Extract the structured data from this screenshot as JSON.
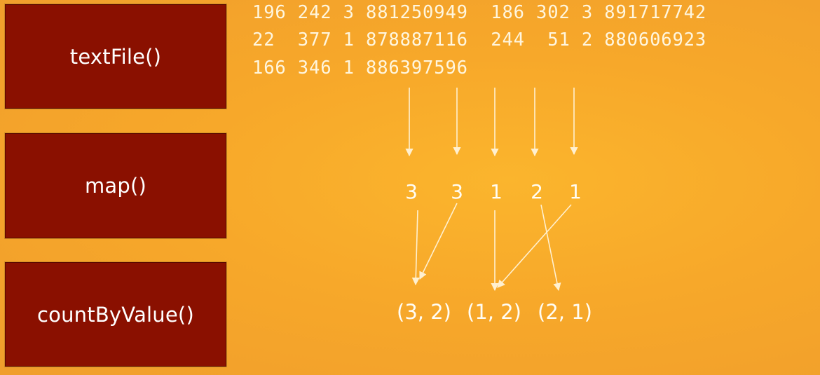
{
  "stages": [
    {
      "label": "textFile()"
    },
    {
      "label": "map()"
    },
    {
      "label": "countByValue()"
    }
  ],
  "raw_lines": [
    "196 242 3 881250949  186 302 3 891717742",
    "22  377 1 878887116  244  51 2 880606923",
    "166 346 1 886397596"
  ],
  "mapped_values": [
    "3",
    "3",
    "1",
    "2",
    "1"
  ],
  "counted_tuples": [
    "(3, 2)",
    "(1, 2)",
    "(2, 1)"
  ],
  "colors": {
    "stage_box": "#8a1000",
    "background": "#f7a82a",
    "text": "#ffffff",
    "arrows": "#fff0d0"
  }
}
